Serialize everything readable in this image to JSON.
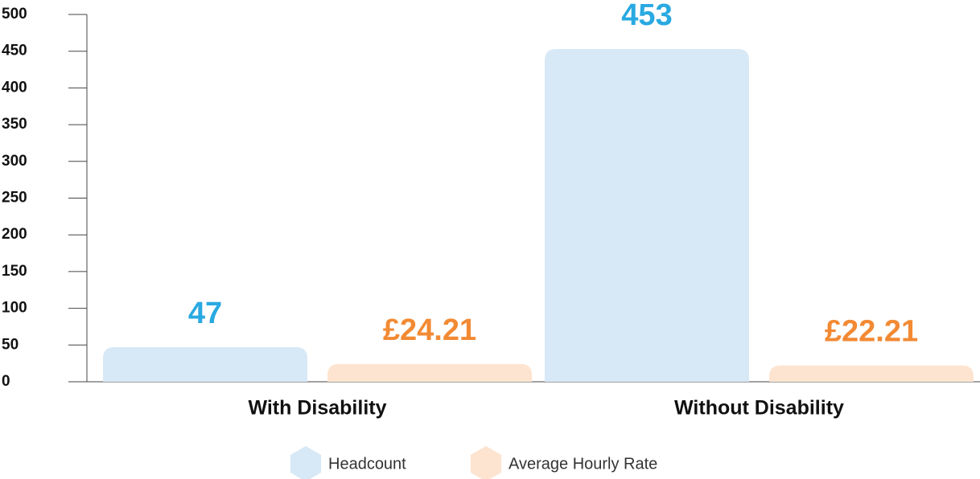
{
  "chart_data": {
    "type": "bar",
    "categories": [
      "With Disability",
      "Without Disability"
    ],
    "series": [
      {
        "name": "Headcount",
        "color": "#d7e8f6",
        "label_color": "#29a9e1",
        "values": [
          47,
          453
        ]
      },
      {
        "name": "Average Hourly Rate",
        "color": "#fde4d0",
        "label_color": "#f28a34",
        "values": [
          24.21,
          22.21
        ],
        "value_labels": [
          "£24.21",
          "£22.21"
        ]
      }
    ],
    "ylim": [
      0,
      500
    ],
    "yticks": [
      0,
      50,
      100,
      150,
      200,
      250,
      300,
      350,
      400,
      450,
      500
    ],
    "grid": false,
    "legend": "bottom"
  }
}
